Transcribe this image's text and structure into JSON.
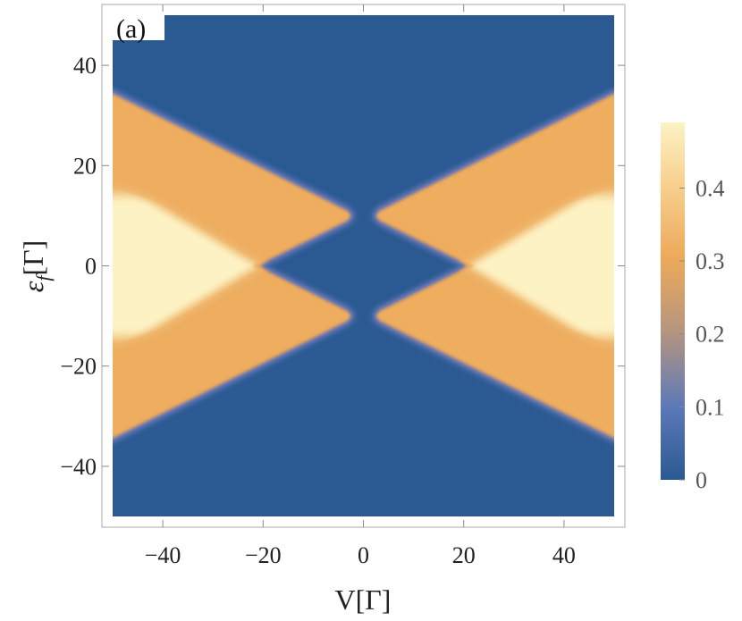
{
  "panel_label": "(a)",
  "colors": {
    "low": "#2b5a93",
    "mid": "#5b78b8",
    "orange": "#eda95a",
    "high": "#fdf2c3",
    "frame": "#aaaaaa"
  },
  "chart_data": {
    "type": "heatmap",
    "xlabel": "V[Γ]",
    "ylabel_main": "ε",
    "ylabel_sub": "f",
    "ylabel_tail": "[Γ]",
    "xlim": [
      -50,
      50
    ],
    "ylim": [
      -50,
      50
    ],
    "xticks": [
      {
        "value": -40,
        "label": "−40"
      },
      {
        "value": -20,
        "label": "−20"
      },
      {
        "value": 0,
        "label": "0"
      },
      {
        "value": 20,
        "label": "20"
      },
      {
        "value": 40,
        "label": "40"
      }
    ],
    "yticks": [
      {
        "value": 40,
        "label": "40"
      },
      {
        "value": 20,
        "label": "20"
      },
      {
        "value": 0,
        "label": "0"
      },
      {
        "value": -20,
        "label": "−20"
      },
      {
        "value": -40,
        "label": "−40"
      }
    ],
    "colorbar": {
      "range": [
        0,
        0.49
      ],
      "ticks": [
        {
          "value": 0,
          "label": "0"
        },
        {
          "value": 0.1,
          "label": "0.1"
        },
        {
          "value": 0.2,
          "label": "0.2"
        },
        {
          "value": 0.3,
          "label": "0.3"
        },
        {
          "value": 0.4,
          "label": "0.4"
        }
      ]
    },
    "value_levels": {
      "background": 0,
      "outer_wedge": 0.32,
      "inner_wedge": 0.46
    },
    "features": {
      "wedge_edge_slope": 0.5,
      "wedge_edge_intercept": 10,
      "central_diamond_half_width": 20,
      "inner_core_half_height": 15
    }
  }
}
